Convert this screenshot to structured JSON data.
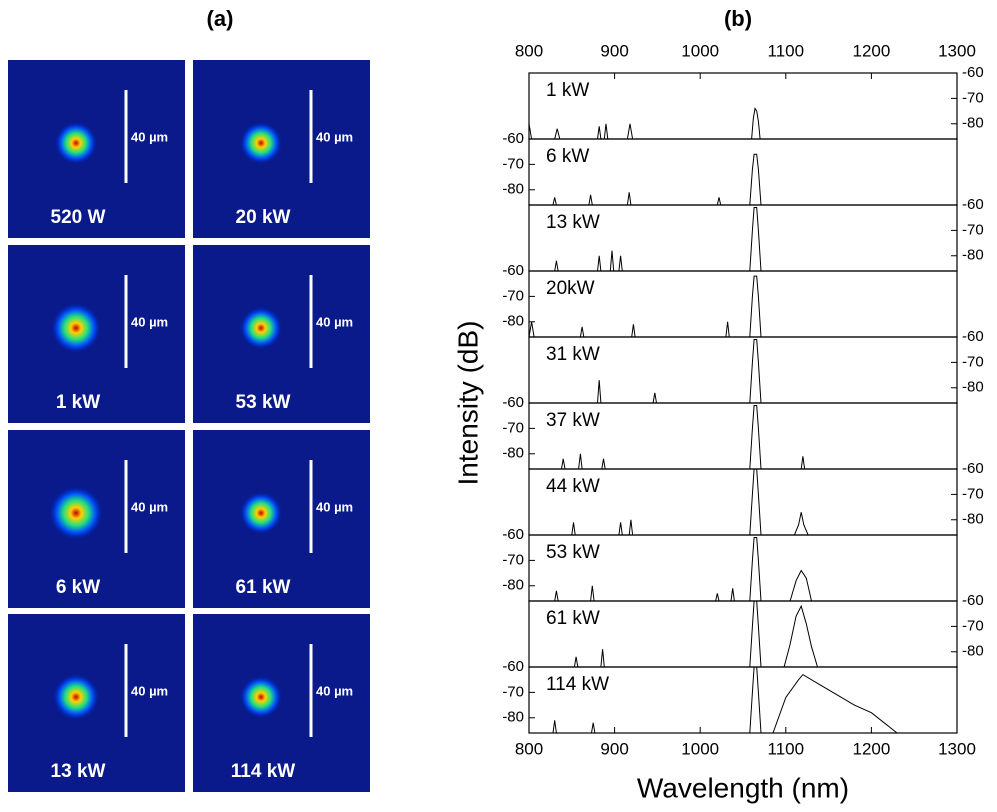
{
  "panel_a": {
    "label": "(a)",
    "images": [
      {
        "power": "520 W",
        "scale": "40 µm"
      },
      {
        "power": "1 kW",
        "scale": "40 µm"
      },
      {
        "power": "6 kW",
        "scale": "40 µm"
      },
      {
        "power": "13 kW",
        "scale": "40 µm"
      },
      {
        "power": "20 kW",
        "scale": "40 µm"
      },
      {
        "power": "53 kW",
        "scale": "40 µm"
      },
      {
        "power": "61  kW",
        "scale": "40 µm"
      },
      {
        "power": "114 kW",
        "scale": "40 µm"
      }
    ]
  },
  "chart_data": {
    "type": "line",
    "title": "(b)",
    "x_label": "Wavelength (nm)",
    "y_label": "Intensity (dB)",
    "xlim": [
      800,
      1300
    ],
    "xticks": [
      800,
      900,
      1000,
      1100,
      1200,
      1300
    ],
    "ylim": [
      -86,
      -60
    ],
    "yticks": [
      -60,
      -70,
      -80
    ],
    "series": [
      {
        "name": "1 kW",
        "color": "#000000",
        "x": [
          800,
          803,
          806,
          830,
          833,
          836,
          880,
          882,
          884,
          888,
          890,
          892,
          915,
          918,
          921,
          1060,
          1062,
          1064,
          1066,
          1068,
          1070,
          1300
        ],
        "values": [
          -80,
          -86,
          -86,
          -86,
          -82,
          -86,
          -86,
          -81,
          -86,
          -86,
          -80,
          -86,
          -86,
          -80,
          -86,
          -86,
          -78,
          -74,
          -75,
          -79,
          -86,
          -86
        ]
      },
      {
        "name": "6 kW",
        "color": "#000000",
        "x": [
          800,
          828,
          830,
          832,
          870,
          872,
          874,
          915,
          917,
          919,
          1020,
          1022,
          1024,
          1058,
          1061,
          1063,
          1066,
          1068,
          1071,
          1300
        ],
        "values": [
          -86,
          -86,
          -83,
          -86,
          -86,
          -82,
          -86,
          -86,
          -81,
          -86,
          -86,
          -83,
          -86,
          -86,
          -72,
          -66,
          -66,
          -72,
          -86,
          -86
        ]
      },
      {
        "name": "13 kW",
        "color": "#000000",
        "x": [
          800,
          830,
          832,
          834,
          880,
          882,
          884,
          895,
          897,
          899,
          905,
          907,
          909,
          1058,
          1061,
          1063,
          1066,
          1068,
          1071,
          1300
        ],
        "values": [
          -86,
          -86,
          -82,
          -86,
          -86,
          -80,
          -86,
          -86,
          -78,
          -86,
          -86,
          -80,
          -86,
          -86,
          -70,
          -61,
          -61,
          -70,
          -86,
          -86
        ]
      },
      {
        "name": "20kW",
        "color": "#000000",
        "x": [
          800,
          803,
          806,
          860,
          862,
          864,
          920,
          922,
          924,
          1030,
          1032,
          1034,
          1058,
          1061,
          1063,
          1066,
          1068,
          1071,
          1300
        ],
        "values": [
          -86,
          -80,
          -86,
          -86,
          -82,
          -86,
          -86,
          -81,
          -86,
          -86,
          -80,
          -86,
          -86,
          -70,
          -62,
          -62,
          -70,
          -86,
          -86
        ]
      },
      {
        "name": "31 kW",
        "color": "#000000",
        "x": [
          800,
          880,
          882,
          884,
          945,
          947,
          949,
          1058,
          1061,
          1063,
          1066,
          1068,
          1071,
          1300
        ],
        "values": [
          -86,
          -86,
          -77,
          -86,
          -86,
          -82,
          -86,
          -86,
          -70,
          -61,
          -61,
          -70,
          -86,
          -86
        ]
      },
      {
        "name": "37 kW",
        "color": "#000000",
        "x": [
          800,
          838,
          840,
          842,
          858,
          860,
          862,
          885,
          887,
          889,
          1058,
          1061,
          1063,
          1066,
          1068,
          1071,
          1118,
          1120,
          1122,
          1300
        ],
        "values": [
          -86,
          -86,
          -82,
          -86,
          -86,
          -80,
          -86,
          -86,
          -82,
          -86,
          -86,
          -70,
          -61,
          -61,
          -70,
          -86,
          -86,
          -81,
          -86,
          -86
        ]
      },
      {
        "name": "44 kW",
        "color": "#000000",
        "x": [
          800,
          850,
          852,
          854,
          905,
          907,
          909,
          917,
          919,
          921,
          1058,
          1061,
          1063,
          1066,
          1068,
          1071,
          1110,
          1115,
          1118,
          1121,
          1126,
          1300
        ],
        "values": [
          -86,
          -86,
          -81,
          -86,
          -86,
          -81,
          -86,
          -86,
          -80,
          -86,
          -86,
          -70,
          -60,
          -60,
          -70,
          -86,
          -86,
          -82,
          -77,
          -82,
          -86,
          -86
        ]
      },
      {
        "name": "53 kW",
        "color": "#000000",
        "x": [
          800,
          830,
          832,
          834,
          872,
          874,
          876,
          1018,
          1020,
          1022,
          1036,
          1038,
          1040,
          1058,
          1061,
          1063,
          1066,
          1068,
          1071,
          1105,
          1112,
          1118,
          1124,
          1130,
          1300
        ],
        "values": [
          -86,
          -86,
          -82,
          -86,
          -86,
          -80,
          -86,
          -86,
          -83,
          -86,
          -86,
          -81,
          -86,
          -86,
          -70,
          -61,
          -61,
          -70,
          -86,
          -86,
          -78,
          -74,
          -77,
          -86,
          -86
        ]
      },
      {
        "name": "61 kW",
        "color": "#000000",
        "x": [
          800,
          853,
          855,
          857,
          884,
          886,
          888,
          1058,
          1061,
          1063,
          1066,
          1068,
          1071,
          1098,
          1105,
          1112,
          1118,
          1124,
          1130,
          1137,
          1300
        ],
        "values": [
          -86,
          -86,
          -82,
          -86,
          -86,
          -79,
          -86,
          -86,
          -70,
          -60,
          -60,
          -70,
          -86,
          -86,
          -77,
          -66,
          -62,
          -69,
          -78,
          -86,
          -86
        ]
      },
      {
        "name": "114 kW",
        "color": "#000000",
        "x": [
          800,
          828,
          830,
          832,
          873,
          875,
          877,
          1058,
          1061,
          1063,
          1066,
          1068,
          1071,
          1085,
          1100,
          1115,
          1120,
          1140,
          1160,
          1180,
          1200,
          1215,
          1230,
          1300
        ],
        "values": [
          -86,
          -86,
          -81,
          -86,
          -86,
          -82,
          -86,
          -86,
          -70,
          -60,
          -60,
          -70,
          -86,
          -86,
          -72,
          -65,
          -63,
          -67,
          -71,
          -75,
          -78,
          -82,
          -86,
          -86
        ]
      }
    ]
  }
}
